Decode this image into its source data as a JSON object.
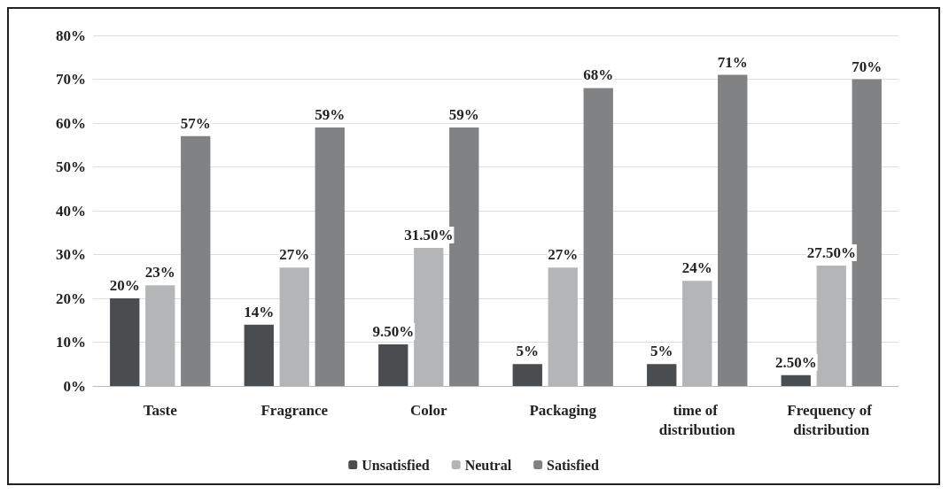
{
  "chart_data": {
    "type": "bar",
    "categories": [
      "Taste",
      "Fragrance",
      "Color",
      "Packaging",
      "time of distribution",
      "Frequency of distribution"
    ],
    "series": [
      {
        "name": "Unsatisfied",
        "color": "#4a4d50",
        "values": [
          20,
          14,
          9.5,
          5,
          5,
          2.5
        ],
        "value_labels": [
          "20%",
          "14%",
          "9.50%",
          "5%",
          "5%",
          "2.50%"
        ]
      },
      {
        "name": "Neutral",
        "color": "#b3b5b6",
        "values": [
          23,
          27,
          31.5,
          27,
          24,
          27.5
        ],
        "value_labels": [
          "23%",
          "27%",
          "31.50%",
          "27%",
          "24%",
          "27.50%"
        ]
      },
      {
        "name": "Satisfied",
        "color": "#808284",
        "values": [
          57,
          59,
          59,
          68,
          71,
          70
        ],
        "value_labels": [
          "57%",
          "59%",
          "59%",
          "68%",
          "71%",
          "70%"
        ]
      }
    ],
    "ylim": [
      0,
      80
    ],
    "yticks": [
      {
        "value": 0,
        "label": "0%"
      },
      {
        "value": 10,
        "label": "10%"
      },
      {
        "value": 20,
        "label": "20%"
      },
      {
        "value": 30,
        "label": "30%"
      },
      {
        "value": 40,
        "label": "40%"
      },
      {
        "value": 50,
        "label": "50%"
      },
      {
        "value": 60,
        "label": "60%"
      },
      {
        "value": 70,
        "label": "70%"
      },
      {
        "value": 80,
        "label": "80%"
      }
    ],
    "grid": "y",
    "legend": "bottom"
  }
}
